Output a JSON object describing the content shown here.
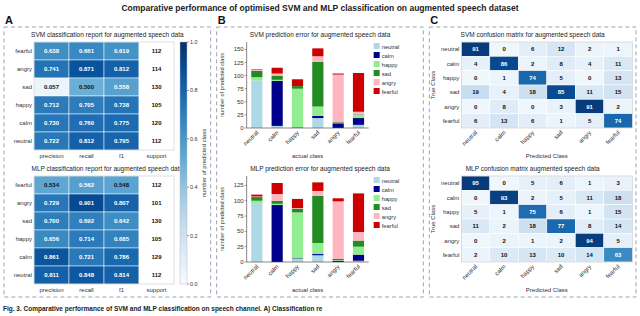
{
  "title": "Comparative performance of optimised SVM and MLP classification on augmented speech dataset",
  "caption": "Fig. 3. Comparative performance of SVM and MLP classification on speech channel. A) Classification re",
  "chart_data": [
    {
      "type": "heatmap",
      "title": "SVM classification report for augmented speech data",
      "annotations": [
        "A"
      ],
      "categories": [
        "precision",
        "recall",
        "f1",
        "support"
      ],
      "rows": [
        "fearful",
        "angry",
        "sad",
        "happy",
        "calm",
        "neutral"
      ],
      "values": [
        [
          0.638,
          0.661,
          0.619,
          112
        ],
        [
          0.741,
          0.871,
          0.812,
          114
        ],
        [
          0.057,
          0.5,
          0.558,
          130
        ],
        [
          0.712,
          0.705,
          0.738,
          105
        ],
        [
          0.73,
          0.76,
          0.775,
          120
        ],
        [
          0.722,
          0.812,
          0.795,
          112
        ]
      ],
      "value_labels": [
        [
          "0.638",
          "0.661",
          "0.619",
          "112"
        ],
        [
          "0.741",
          "0.871",
          "0.812",
          "114"
        ],
        [
          "0.057",
          "0.500",
          "0.558",
          "130"
        ],
        [
          "0.712",
          "0.705",
          "0.738",
          "105"
        ],
        [
          "0.730",
          "0.760",
          "0.775",
          "120"
        ],
        [
          "0.722",
          "0.812",
          "0.795",
          "112"
        ]
      ],
      "data_labels": true,
      "colorbar": {
        "label": "number of predicted class",
        "range": [
          0,
          1
        ],
        "ticks": [
          {
            "value": 0,
            "label": "0.0"
          },
          0.2,
          0.4,
          0.6,
          0.8,
          {
            "value": 1,
            "label": "1.0"
          }
        ]
      }
    },
    {
      "type": "heatmap",
      "title": "MLP classification report for augmented speech data",
      "categories": [
        "precision",
        "recall",
        "f1",
        "support"
      ],
      "rows": [
        "fearful",
        "angry",
        "sad",
        "happy",
        "calm",
        "neutral"
      ],
      "values": [
        [
          0.534,
          0.562,
          0.548,
          112
        ],
        [
          0.729,
          0.901,
          0.807,
          101
        ],
        [
          0.7,
          0.692,
          0.642,
          130
        ],
        [
          0.656,
          0.714,
          0.685,
          105
        ],
        [
          0.861,
          0.721,
          0.786,
          129
        ],
        [
          0.811,
          0.848,
          0.814,
          112
        ]
      ],
      "value_labels": [
        [
          "0.534",
          "0.562",
          "0.548",
          "112"
        ],
        [
          "0.729",
          "0.901",
          "0.807",
          "101"
        ],
        [
          "0.700",
          "0.692",
          "0.642",
          "130"
        ],
        [
          "0.656",
          "0.714",
          "0.685",
          "105"
        ],
        [
          "0.861",
          "0.721",
          "0.786",
          "129"
        ],
        [
          "0.811",
          "0.848",
          "0.814",
          "112"
        ]
      ],
      "data_labels": true
    },
    {
      "type": "bar",
      "stacked": true,
      "title": "SVM prediction error for augmented speech data",
      "annotations": [
        "B"
      ],
      "xlabel": "actual class",
      "ylabel": "number of predicted class",
      "categories": [
        "neutral",
        "calm",
        "happy",
        "sad",
        "angry",
        "fearful"
      ],
      "series": [
        {
          "name": "neutral",
          "color": "#add8e6",
          "values": [
            91,
            4,
            0,
            19,
            0,
            6
          ]
        },
        {
          "name": "calm",
          "color": "#00008b",
          "values": [
            0,
            86,
            1,
            4,
            8,
            13
          ]
        },
        {
          "name": "happy",
          "color": "#90ee90",
          "values": [
            6,
            2,
            74,
            18,
            0,
            6
          ]
        },
        {
          "name": "sad",
          "color": "#228b22",
          "values": [
            12,
            8,
            5,
            85,
            3,
            1
          ]
        },
        {
          "name": "angry",
          "color": "#ffb6c1",
          "values": [
            2,
            4,
            0,
            11,
            91,
            5
          ]
        },
        {
          "name": "fearful",
          "color": "#cc0000",
          "values": [
            1,
            11,
            13,
            15,
            2,
            74
          ]
        }
      ],
      "ylim": [
        0,
        164.16
      ],
      "yticks": [
        0,
        25,
        50,
        75,
        100,
        125,
        150
      ],
      "legend": "upper right"
    },
    {
      "type": "bar",
      "stacked": true,
      "title": "MLP prediction error for augmented speech data",
      "xlabel": "actual class",
      "ylabel": "number of predicted class",
      "categories": [
        "neutral",
        "calm",
        "happy",
        "sad",
        "angry",
        "fearful"
      ],
      "series": [
        {
          "name": "neutral",
          "color": "#add8e6",
          "values": [
            95,
            0,
            5,
            11,
            0,
            2
          ]
        },
        {
          "name": "calm",
          "color": "#00008b",
          "values": [
            0,
            93,
            1,
            2,
            2,
            10
          ]
        },
        {
          "name": "happy",
          "color": "#90ee90",
          "values": [
            5,
            2,
            75,
            18,
            1,
            13
          ]
        },
        {
          "name": "sad",
          "color": "#228b22",
          "values": [
            6,
            5,
            6,
            77,
            2,
            10
          ]
        },
        {
          "name": "angry",
          "color": "#ffb6c1",
          "values": [
            1,
            11,
            1,
            8,
            94,
            14
          ]
        },
        {
          "name": "fearful",
          "color": "#cc0000",
          "values": [
            3,
            18,
            15,
            14,
            5,
            63
          ]
        }
      ],
      "ylim": [
        0,
        140.4
      ],
      "yticks": [
        0,
        25,
        50,
        75,
        100,
        125
      ],
      "legend": "upper right"
    },
    {
      "type": "heatmap",
      "title": "SVM confusion matrix for augmented speech data",
      "annotations": [
        "C"
      ],
      "xlabel": "Predicted Class",
      "ylabel": "True Class",
      "categories": [
        "neutral",
        "calm",
        "happy",
        "sad",
        "angry",
        "fearful"
      ],
      "rows": [
        "neutral",
        "calm",
        "happy",
        "sad",
        "angry",
        "fearful"
      ],
      "values": [
        [
          91,
          0,
          6,
          12,
          2,
          1
        ],
        [
          4,
          86,
          2,
          8,
          4,
          11
        ],
        [
          0,
          1,
          74,
          5,
          0,
          13
        ],
        [
          19,
          4,
          18,
          85,
          11,
          15
        ],
        [
          0,
          8,
          0,
          3,
          91,
          2
        ],
        [
          6,
          13,
          6,
          1,
          5,
          74
        ]
      ],
      "data_labels": true
    },
    {
      "type": "heatmap",
      "title": "MLP confusion matrix augmented speech data",
      "xlabel": "Predicted Class",
      "ylabel": "True Class",
      "categories": [
        "neutral",
        "calm",
        "happy",
        "sad",
        "angry",
        "fearful"
      ],
      "rows": [
        "neutral",
        "calm",
        "happy",
        "sad",
        "angry",
        "fearful"
      ],
      "values": [
        [
          95,
          0,
          5,
          6,
          1,
          3
        ],
        [
          0,
          93,
          2,
          5,
          11,
          18
        ],
        [
          5,
          1,
          75,
          6,
          1,
          15
        ],
        [
          11,
          2,
          18,
          77,
          8,
          14
        ],
        [
          0,
          2,
          1,
          2,
          94,
          5
        ],
        [
          2,
          10,
          13,
          10,
          14,
          63
        ]
      ],
      "data_labels": true
    }
  ]
}
